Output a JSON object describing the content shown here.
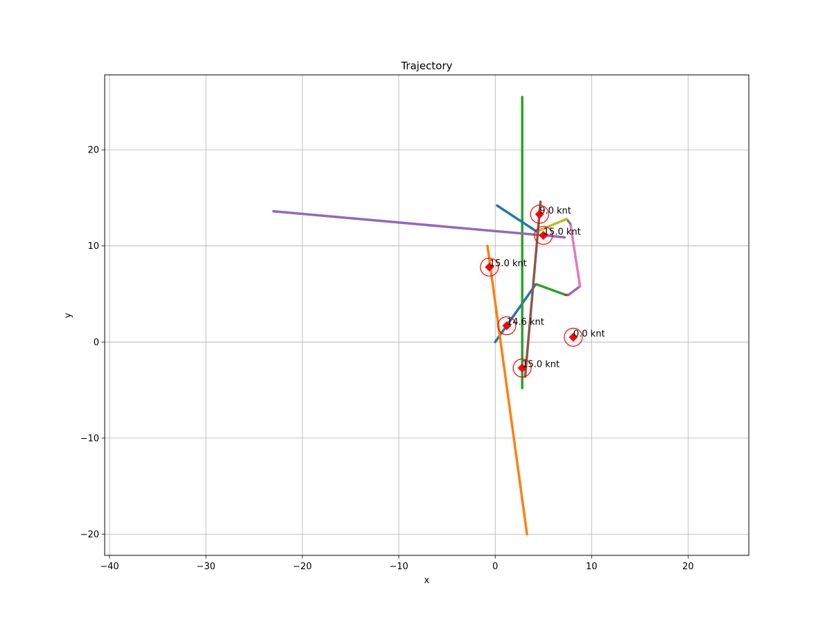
{
  "chart_data": {
    "type": "line",
    "title": "Trajectory",
    "xlabel": "x",
    "ylabel": "y",
    "xlim": [
      -40.5,
      26.3
    ],
    "ylim": [
      -22.2,
      27.8
    ],
    "xticks": [
      -40,
      -30,
      -20,
      -10,
      0,
      10,
      20
    ],
    "yticks": [
      -20,
      -10,
      0,
      10,
      20
    ],
    "xtick_labels": [
      "−40",
      "−30",
      "−20",
      "−10",
      "0",
      "10",
      "20"
    ],
    "ytick_labels": [
      "−20",
      "−10",
      "0",
      "10",
      "20"
    ],
    "grid": true,
    "series": [
      {
        "color": "#1f77b4",
        "points": [
          [
            0,
            0
          ],
          [
            4.2,
            6.0
          ]
        ]
      },
      {
        "color": "#ff7f0e",
        "points": [
          [
            -0.8,
            10.0
          ],
          [
            3.3,
            -20.0
          ]
        ]
      },
      {
        "color": "#2ca02c",
        "points": [
          [
            2.8,
            25.5
          ],
          [
            2.8,
            -4.8
          ]
        ]
      },
      {
        "color": "#2ca02c",
        "points": [
          [
            4.3,
            6.0
          ],
          [
            7.3,
            4.9
          ]
        ]
      },
      {
        "color": "#d62728",
        "points": [
          [
            7.3,
            4.9
          ],
          [
            7.6,
            4.9
          ]
        ]
      },
      {
        "color": "#9467bd",
        "points": [
          [
            7.6,
            4.9
          ],
          [
            8.8,
            5.8
          ]
        ]
      },
      {
        "color": "#e377c2",
        "points": [
          [
            8.8,
            5.8
          ],
          [
            7.8,
            12.3
          ]
        ]
      },
      {
        "color": "#7f7f7f",
        "points": [
          [
            7.8,
            12.3
          ],
          [
            7.4,
            12.8
          ]
        ]
      },
      {
        "color": "#bcbd22",
        "points": [
          [
            7.4,
            12.8
          ],
          [
            4.3,
            11.5
          ]
        ]
      },
      {
        "color": "#1f77b4",
        "points": [
          [
            4.3,
            11.5
          ],
          [
            0.2,
            14.2
          ]
        ]
      },
      {
        "color": "#9467bd",
        "points": [
          [
            -23.0,
            13.6
          ],
          [
            7.2,
            10.9
          ]
        ]
      },
      {
        "color": "#8c564b",
        "points": [
          [
            3.1,
            -3.6
          ],
          [
            4.7,
            14.6
          ]
        ]
      }
    ],
    "markers": [
      {
        "x": 4.6,
        "y": 13.3,
        "label": "9.0 knt"
      },
      {
        "x": 5.0,
        "y": 11.1,
        "label": "15.0 knt"
      },
      {
        "x": -0.6,
        "y": 7.8,
        "label": "15.0 knt"
      },
      {
        "x": 1.2,
        "y": 1.7,
        "label": "14.6 knt"
      },
      {
        "x": 8.1,
        "y": 0.5,
        "label": "0.0 knt"
      },
      {
        "x": 2.8,
        "y": -2.7,
        "label": "15.0 knt"
      }
    ],
    "marker_color": "#ff0000"
  }
}
